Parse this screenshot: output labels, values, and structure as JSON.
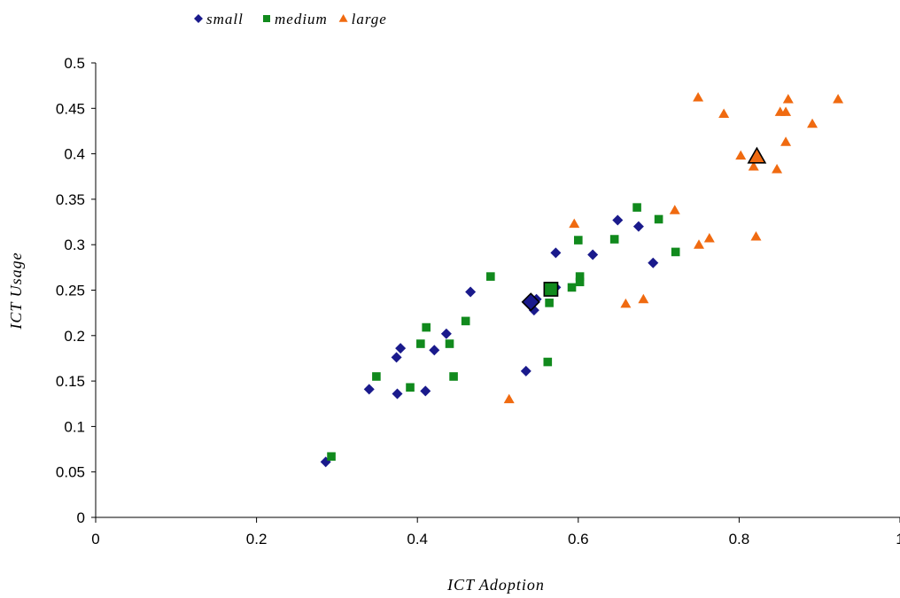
{
  "chart_data": {
    "type": "scatter",
    "title": "",
    "xlabel": "ICT Adoption",
    "ylabel": "ICT Usage",
    "xlim": [
      0,
      1
    ],
    "ylim": [
      0,
      0.5
    ],
    "x_ticks": [
      0,
      0.2,
      0.4,
      0.6,
      0.8,
      1
    ],
    "x_tick_labels": [
      "0",
      "0.2",
      "0.4",
      "0.6",
      "0.8",
      "1"
    ],
    "y_ticks": [
      0,
      0.05,
      0.1,
      0.15,
      0.2,
      0.25,
      0.3,
      0.35,
      0.4,
      0.45,
      0.5
    ],
    "y_tick_labels": [
      "0",
      "0.05",
      "0.1",
      "0.15",
      "0.2",
      "0.25",
      "0.3",
      "0.35",
      "0.4",
      "0.45",
      "0.5"
    ],
    "grid": false,
    "legend_position": "top-left",
    "series": [
      {
        "name": "small",
        "marker": "diamond",
        "color": "#1a1a8c",
        "points": [
          [
            0.286,
            0.061
          ],
          [
            0.34,
            0.141
          ],
          [
            0.375,
            0.136
          ],
          [
            0.374,
            0.176
          ],
          [
            0.379,
            0.186
          ],
          [
            0.41,
            0.139
          ],
          [
            0.421,
            0.184
          ],
          [
            0.436,
            0.202
          ],
          [
            0.466,
            0.248
          ],
          [
            0.535,
            0.161
          ],
          [
            0.545,
            0.228
          ],
          [
            0.541,
            0.234
          ],
          [
            0.548,
            0.24
          ],
          [
            0.572,
            0.253
          ],
          [
            0.572,
            0.291
          ],
          [
            0.618,
            0.289
          ],
          [
            0.649,
            0.327
          ],
          [
            0.675,
            0.32
          ],
          [
            0.693,
            0.28
          ]
        ],
        "mean": [
          0.541,
          0.237
        ]
      },
      {
        "name": "medium",
        "marker": "square",
        "color": "#118a1d",
        "points": [
          [
            0.293,
            0.067
          ],
          [
            0.349,
            0.155
          ],
          [
            0.391,
            0.143
          ],
          [
            0.404,
            0.191
          ],
          [
            0.411,
            0.209
          ],
          [
            0.44,
            0.191
          ],
          [
            0.445,
            0.155
          ],
          [
            0.46,
            0.216
          ],
          [
            0.491,
            0.265
          ],
          [
            0.562,
            0.171
          ],
          [
            0.564,
            0.236
          ],
          [
            0.592,
            0.253
          ],
          [
            0.6,
            0.305
          ],
          [
            0.602,
            0.259
          ],
          [
            0.602,
            0.265
          ],
          [
            0.645,
            0.306
          ],
          [
            0.673,
            0.341
          ],
          [
            0.7,
            0.328
          ],
          [
            0.721,
            0.292
          ]
        ],
        "mean": [
          0.566,
          0.251
        ]
      },
      {
        "name": "large",
        "marker": "triangle",
        "color": "#f06a10",
        "points": [
          [
            0.514,
            0.13
          ],
          [
            0.595,
            0.323
          ],
          [
            0.659,
            0.235
          ],
          [
            0.681,
            0.24
          ],
          [
            0.72,
            0.338
          ],
          [
            0.749,
            0.462
          ],
          [
            0.75,
            0.3
          ],
          [
            0.763,
            0.307
          ],
          [
            0.781,
            0.444
          ],
          [
            0.802,
            0.398
          ],
          [
            0.818,
            0.386
          ],
          [
            0.821,
            0.309
          ],
          [
            0.847,
            0.383
          ],
          [
            0.851,
            0.446
          ],
          [
            0.858,
            0.446
          ],
          [
            0.858,
            0.413
          ],
          [
            0.861,
            0.46
          ],
          [
            0.891,
            0.433
          ],
          [
            0.923,
            0.46
          ]
        ],
        "mean": [
          0.822,
          0.397
        ]
      }
    ]
  }
}
